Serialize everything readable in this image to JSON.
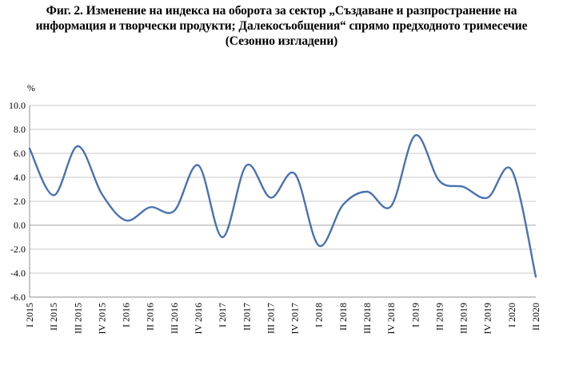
{
  "title_lines": [
    "Фиг. 2. Изменение на индекса на оборота за сектор „Създаване и разпространение на",
    "информация и творчески продукти; Далекосъобщения“ спрямо предходното тримесечие",
    "(Сезонно изгладени)"
  ],
  "chart_data": {
    "type": "line",
    "title": "Фиг. 2. Изменение на индекса на оборота за сектор „Създаване и разпространение на информация и творчески продукти; Далекосъобщения“ спрямо предходното тримесечие (Сезонно изгладени)",
    "ylabel": "%",
    "xlabel": "",
    "ylim": [
      -6.0,
      10.0
    ],
    "y_ticks": [
      "10.0",
      "8.0",
      "6.0",
      "4.0",
      "2.0",
      "0.0",
      "-2.0",
      "-4.0",
      "-6.0"
    ],
    "grid": true,
    "legend": "none",
    "categories": [
      "I 2015",
      "II 2015",
      "III 2015",
      "IV 2015",
      "I 2016",
      "II 2016",
      "III 2016",
      "IV 2016",
      "I 2017",
      "II 2017",
      "III 2017",
      "IV 2017",
      "I 2018",
      "II 2018",
      "III 2018",
      "IV 2018",
      "I 2019",
      "II 2019",
      "III 2019",
      "IV 2019",
      "I 2020",
      "II 2020"
    ],
    "series": [
      {
        "color": "#4a72b0",
        "values": [
          6.4,
          2.5,
          6.6,
          2.6,
          0.4,
          1.5,
          1.2,
          5.0,
          -1.0,
          5.0,
          2.3,
          4.3,
          -1.7,
          1.7,
          2.8,
          1.6,
          7.5,
          3.7,
          3.2,
          2.3,
          4.6,
          -4.3
        ]
      }
    ]
  }
}
